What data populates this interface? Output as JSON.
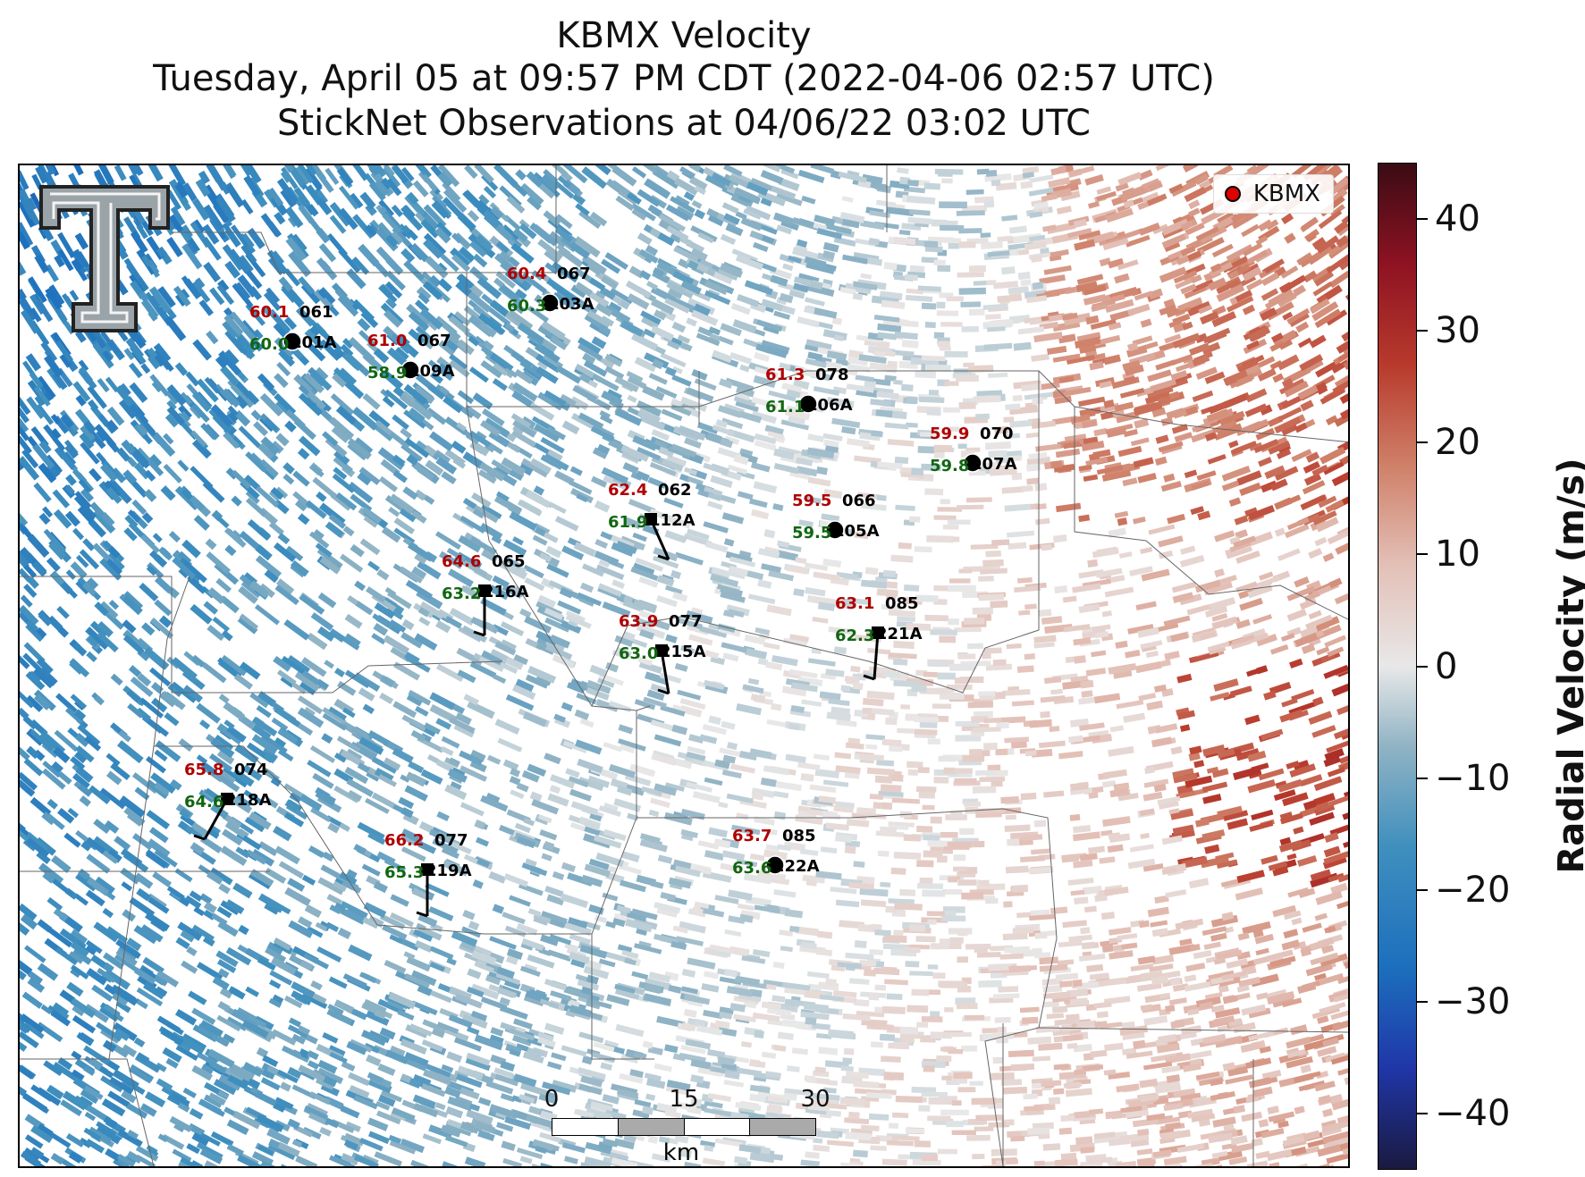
{
  "title": {
    "line1": "KBMX Velocity",
    "line2": "Tuesday, April 05 at 09:57 PM CDT (2022-04-06 02:57 UTC)",
    "line3": "StickNet Observations at 04/06/22 03:02 UTC"
  },
  "legend": {
    "label": "KBMX",
    "color": "#e00000"
  },
  "logo": {
    "name": "double-t-logo"
  },
  "scalebar": {
    "labels": [
      "0",
      "15",
      "30"
    ],
    "unit": "km"
  },
  "colorbar": {
    "label": "Radial Velocity (m/s)",
    "ticks": [
      "40",
      "30",
      "20",
      "10",
      "0",
      "−10",
      "−20",
      "−30",
      "−40"
    ],
    "range": [
      -45,
      45
    ]
  },
  "stations": [
    {
      "id": "101A",
      "temp": "60.1",
      "dew": "60.0",
      "wdir": "061",
      "type": "circle"
    },
    {
      "id": "109A",
      "temp": "61.0",
      "dew": "58.9",
      "wdir": "067",
      "type": "circle"
    },
    {
      "id": "103A",
      "temp": "60.4",
      "dew": "60.3",
      "wdir": "067",
      "type": "circle"
    },
    {
      "id": "106A",
      "temp": "61.3",
      "dew": "61.1",
      "wdir": "078",
      "type": "circle"
    },
    {
      "id": "107A",
      "temp": "59.9",
      "dew": "59.8",
      "wdir": "070",
      "type": "circle"
    },
    {
      "id": "112A",
      "temp": "62.4",
      "dew": "61.9",
      "wdir": "062",
      "type": "square"
    },
    {
      "id": "105A",
      "temp": "59.5",
      "dew": "59.5",
      "wdir": "066",
      "type": "circle"
    },
    {
      "id": "216A",
      "temp": "64.6",
      "dew": "63.2",
      "wdir": "065",
      "type": "square"
    },
    {
      "id": "215A",
      "temp": "63.9",
      "dew": "63.0",
      "wdir": "077",
      "type": "square"
    },
    {
      "id": "221A",
      "temp": "63.1",
      "dew": "62.3",
      "wdir": "085",
      "type": "square"
    },
    {
      "id": "218A",
      "temp": "65.8",
      "dew": "64.6",
      "wdir": "074",
      "type": "square"
    },
    {
      "id": "219A",
      "temp": "66.2",
      "dew": "65.3",
      "wdir": "077",
      "type": "square"
    },
    {
      "id": "222A",
      "temp": "63.7",
      "dew": "63.6",
      "wdir": "085",
      "type": "circle"
    }
  ]
}
